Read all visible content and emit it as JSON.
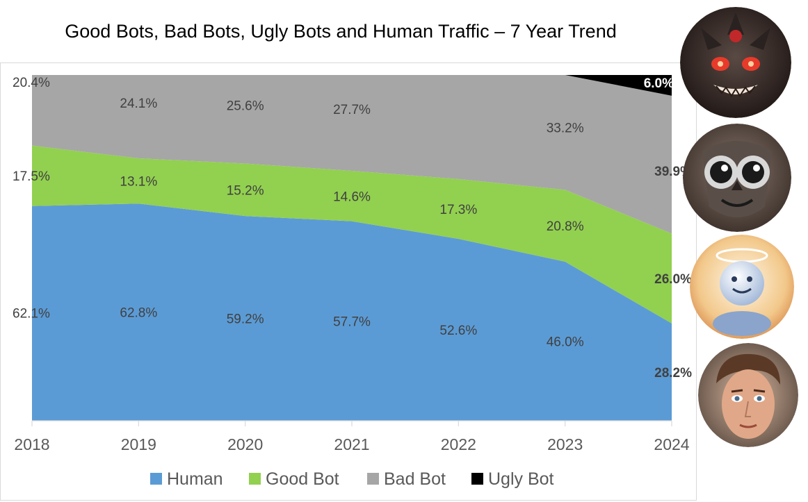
{
  "chart_data": {
    "type": "area",
    "stacked": true,
    "percent_stacked": true,
    "title": "Good Bots, Bad Bots, Ugly Bots and Human Traffic – 7 Year Trend",
    "x": [
      "2018",
      "2019",
      "2020",
      "2021",
      "2022",
      "2023",
      "2024"
    ],
    "series": [
      {
        "name": "Human",
        "color": "#5b9bd5",
        "values": [
          62.1,
          62.8,
          59.2,
          57.7,
          52.6,
          46.0,
          28.2
        ],
        "labels": [
          "62.1%",
          "62.8%",
          "59.2%",
          "57.7%",
          "52.6%",
          "46.0%",
          "28.2%"
        ]
      },
      {
        "name": "Good Bot",
        "color": "#92d050",
        "values": [
          17.5,
          13.1,
          15.2,
          14.6,
          17.3,
          20.8,
          26.0
        ],
        "labels": [
          "17.5%",
          "13.1%",
          "15.2%",
          "14.6%",
          "17.3%",
          "20.8%",
          "26.0%"
        ]
      },
      {
        "name": "Bad Bot",
        "color": "#a6a6a6",
        "values": [
          20.4,
          24.1,
          25.6,
          27.7,
          30.1,
          33.2,
          39.9
        ],
        "labels": [
          "20.4%",
          "24.1%",
          "25.6%",
          "27.7%",
          "",
          "33.2%",
          "39.9%"
        ]
      },
      {
        "name": "Ugly Bot",
        "color": "#000000",
        "values": [
          0,
          0,
          0,
          0,
          0,
          0,
          6.0
        ],
        "labels": [
          "",
          "",
          "",
          "",
          "",
          "",
          "6.0%"
        ]
      }
    ],
    "ylim": [
      0,
      100
    ],
    "grid": false,
    "legend_position": "bottom"
  },
  "avatars": [
    {
      "name": "ugly-bot-demon-avatar-icon",
      "bg": "#3a2a26",
      "accent": "#d0302a"
    },
    {
      "name": "bad-bot-owl-avatar-icon",
      "bg": "#4a3a34",
      "accent": "#c9c9c9"
    },
    {
      "name": "good-bot-angel-avatar-icon",
      "bg": "#f3d3a0",
      "accent": "#c9d7ee"
    },
    {
      "name": "human-face-avatar-icon",
      "bg": "#6a4a3a",
      "accent": "#d9a88a"
    }
  ]
}
